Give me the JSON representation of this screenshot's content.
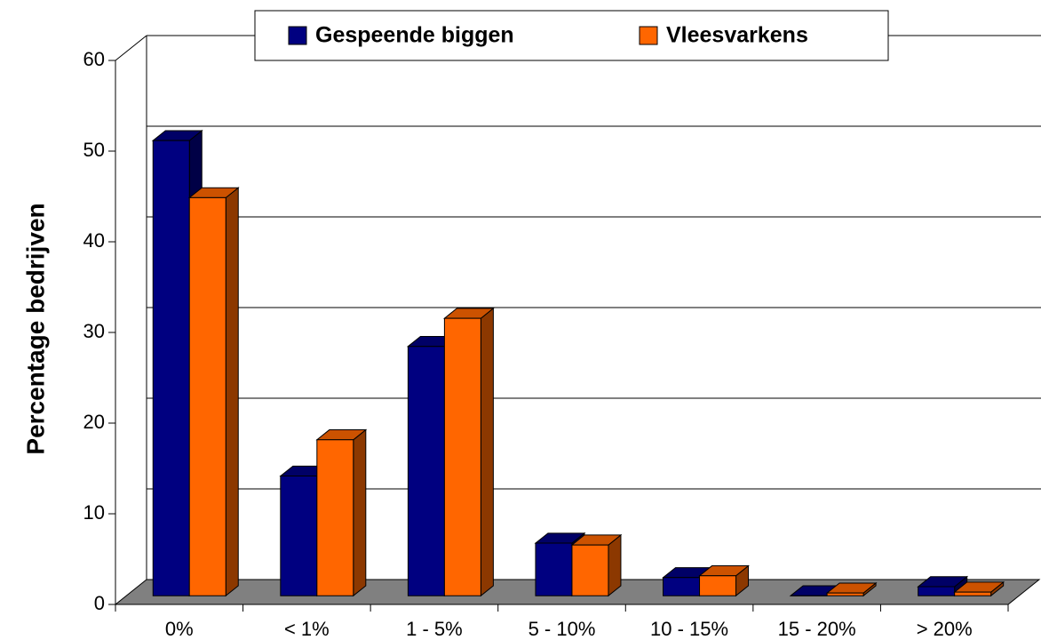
{
  "chart_data": {
    "type": "bar3d",
    "y_label": "Percentage bedrijven",
    "categories": [
      "0%",
      "< 1%",
      "1 - 5%",
      "5 - 10%",
      "10 - 15%",
      "15 - 20%",
      "> 20%"
    ],
    "series": [
      {
        "name": "Gespeende biggen",
        "color": "#000080",
        "values": [
          50.2,
          13.2,
          27.5,
          5.8,
          2,
          0,
          1
        ]
      },
      {
        "name": "Vleesvarkens",
        "color": "#ff6600",
        "values": [
          43.9,
          17.2,
          30.6,
          5.6,
          2.2,
          0.3,
          0.4
        ]
      }
    ],
    "ylim": [
      0,
      60
    ],
    "yticks": [
      0,
      10,
      20,
      30,
      40,
      50,
      60
    ],
    "grid": true,
    "legend": "top"
  }
}
